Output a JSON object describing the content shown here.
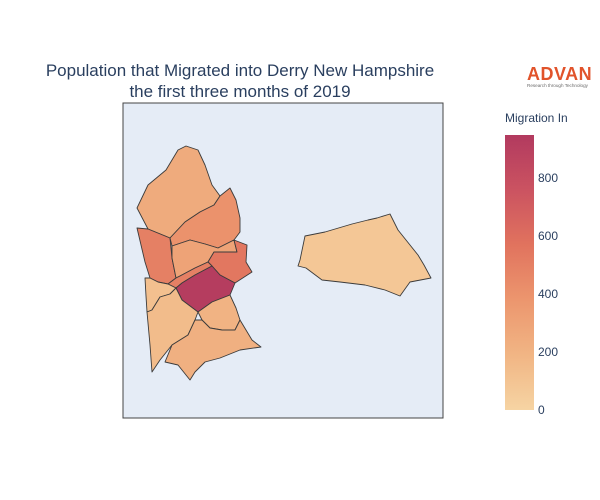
{
  "title_line1": "Population that Migrated into Derry New Hampshire",
  "title_line2": "the first three months of 2019",
  "logo": {
    "word": "ADVAN",
    "tagline": "Research through Technology",
    "color": "#e1532b"
  },
  "colorbar": {
    "title": "Migration In",
    "ticks": [
      "0",
      "200",
      "400",
      "600",
      "800"
    ],
    "range": [
      0,
      950
    ],
    "colorscale": [
      "#f6d4a3",
      "#f1b584",
      "#ec966e",
      "#e1735e",
      "#cb5361",
      "#b23a5f"
    ]
  },
  "map_background": "#e5ecf6",
  "chart_data": {
    "type": "choropleth",
    "title": "Population that Migrated into Derry New Hampshire the first three months of 2019",
    "colorbar_title": "Migration In",
    "regions": [
      {
        "id": "north",
        "value": 250
      },
      {
        "id": "west-upper",
        "value": 500
      },
      {
        "id": "center-upper",
        "value": 400
      },
      {
        "id": "east-upper",
        "value": 300
      },
      {
        "id": "east-middle",
        "value": 550
      },
      {
        "id": "center-middle",
        "value": 500
      },
      {
        "id": "central-dark",
        "value": 930
      },
      {
        "id": "west-small",
        "value": 120
      },
      {
        "id": "southwest",
        "value": 150
      },
      {
        "id": "south-center",
        "value": 200
      },
      {
        "id": "south-east",
        "value": 220
      },
      {
        "id": "east-detached",
        "value": 80
      }
    ]
  }
}
